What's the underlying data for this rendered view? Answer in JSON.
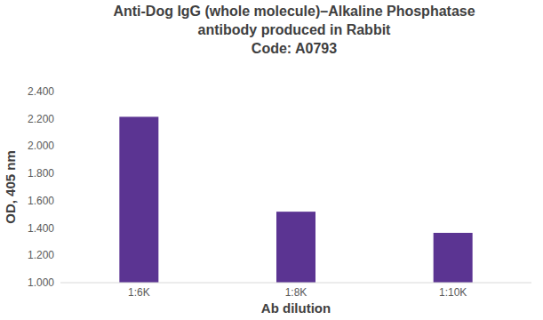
{
  "chart_data": {
    "type": "bar",
    "title": [
      "Anti-Dog IgG (whole molecule)–Alkaline Phosphatase",
      "antibody produced in Rabbit",
      "Code: A0793"
    ],
    "x_label": "Ab dilution",
    "y_label": "OD, 405 nm",
    "categories": [
      "1:6K",
      "1:8K",
      "1:10K"
    ],
    "values": [
      2.215,
      1.52,
      1.365
    ],
    "color": "#5b3492",
    "ylim": [
      1,
      2.4
    ],
    "yticks": [
      {
        "value": 1,
        "label": "1.000"
      },
      {
        "value": 1.2,
        "label": "1.200"
      },
      {
        "value": 1.4,
        "label": "1.400"
      },
      {
        "value": 1.6,
        "label": "1.600"
      },
      {
        "value": 1.8,
        "label": "1.800"
      },
      {
        "value": 2,
        "label": "2.000"
      },
      {
        "value": 2.2,
        "label": "2.200"
      },
      {
        "value": 2.4,
        "label": "2.400"
      }
    ],
    "grid": false
  }
}
